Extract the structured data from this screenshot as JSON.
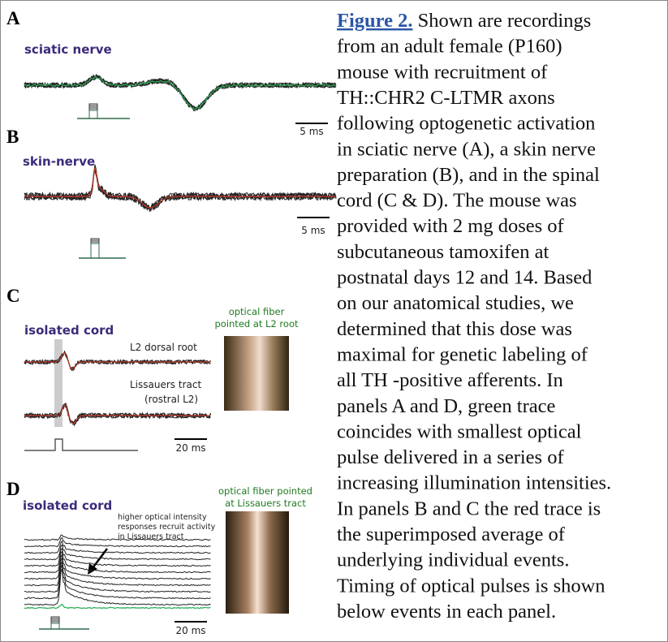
{
  "panels": [
    {
      "label": "A",
      "title": "sciatic nerve",
      "scale_bar": "5 ms"
    },
    {
      "label": "B",
      "title": "skin-nerve",
      "scale_bar": "5 ms"
    },
    {
      "label": "C",
      "title": "isolated cord",
      "trace_labels": [
        "L2 dorsal root",
        "Lissauers tract",
        "(rostral L2)"
      ],
      "photo_caption": [
        "optical fiber",
        "pointed at L2 root"
      ],
      "scale_bar": "20 ms"
    },
    {
      "label": "D",
      "title": "isolated cord",
      "annotation": [
        "higher optical intensity",
        "responses recruit activity",
        "in Lissauers tract"
      ],
      "photo_caption": [
        "optical fiber pointed",
        "at Lissauers tract"
      ],
      "scale_bar": "20 ms"
    }
  ],
  "caption": {
    "label": "Figure 2.",
    "lines": [
      " Shown are recordings",
      "from an adult female (P160)",
      "mouse with recruitment of",
      "TH::CHR2 C-LTMR axons",
      "following optogenetic activation",
      "in sciatic nerve (A), a skin nerve",
      "preparation (B), and in the spinal",
      "cord (C & D). The mouse was",
      "provided with 2 mg doses of",
      "subcutaneous tamoxifen at",
      "postnatal days 12 and 14. Based",
      "on our anatomical studies, we",
      "determined that this dose was",
      "maximal for genetic labeling of",
      "all TH -positive afferents. In",
      "panels A and D, green trace",
      "coincides with smallest optical",
      "pulse delivered in a series of",
      "increasing illumination intensities.",
      "In panels B and C the red trace is",
      "the superimposed average of",
      "underlying individual events.",
      "Timing of optical pulses is shown",
      "below events in each panel."
    ]
  }
}
